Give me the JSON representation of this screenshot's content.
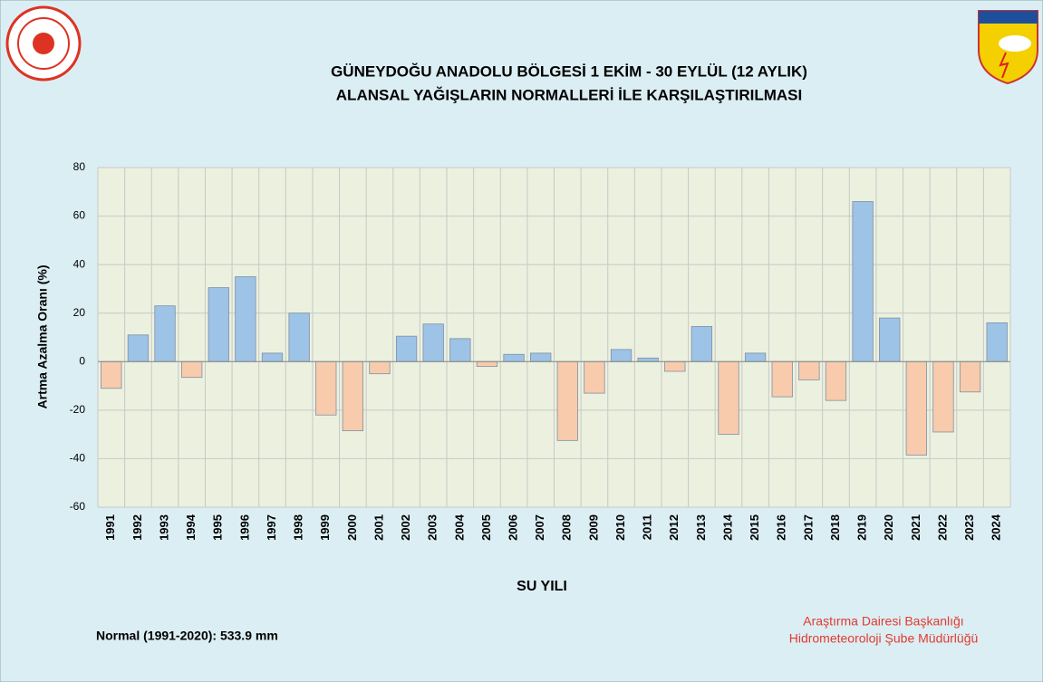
{
  "chart_data": {
    "type": "bar",
    "title": [
      "GÜNEYDOĞU ANADOLU BÖLGESİ  1 EKİM - 30 EYLÜL (12 AYLIK)",
      "ALANSAL YAĞIŞLARIN NORMALLERİ İLE KARŞILAŞTIRILMASI"
    ],
    "x_label": "SU YILI",
    "y_label": "Artma Azalma Oranı (%)",
    "categories": [
      "1991",
      "1992",
      "1993",
      "1994",
      "1995",
      "1996",
      "1997",
      "1998",
      "1999",
      "2000",
      "2001",
      "2002",
      "2003",
      "2004",
      "2005",
      "2006",
      "2007",
      "2008",
      "2009",
      "2010",
      "2011",
      "2012",
      "2013",
      "2014",
      "2015",
      "2016",
      "2017",
      "2018",
      "2019",
      "2020",
      "2021",
      "2022",
      "2023",
      "2024"
    ],
    "values": [
      -11,
      11,
      23,
      -6.5,
      30.5,
      35,
      3.5,
      20,
      -22,
      -28.5,
      -5,
      10.5,
      15.5,
      9.5,
      -2,
      3,
      3.5,
      -32.5,
      -13,
      5,
      1.5,
      -4,
      14.5,
      -30,
      3.5,
      -14.5,
      -7.5,
      -16,
      66,
      18,
      -38.5,
      -29,
      -12.5,
      16
    ],
    "positive_color": "#9dc3e6",
    "negative_color": "#f8cbad",
    "ylim": [
      -60,
      80
    ],
    "yticks": [
      -60,
      -40,
      -20,
      0,
      20,
      40,
      60,
      80
    ],
    "grid": true,
    "annotations": [
      "Normal (1991-2020):  533.9 mm",
      "Araştırma Dairesi Başkanlığı",
      "Hidrometeoroloji Şube Müdürlüğü"
    ]
  }
}
